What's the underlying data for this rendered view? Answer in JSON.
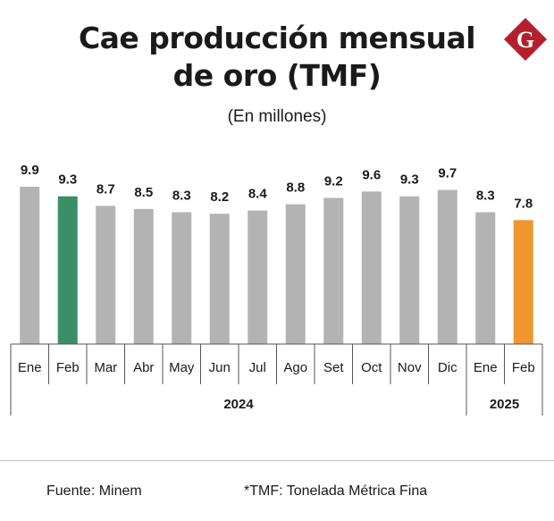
{
  "header": {
    "title_line1": "Cae producción mensual",
    "title_line2": "de oro (TMF)",
    "subtitle": "(En millones)",
    "logo_letter": "G"
  },
  "footer": {
    "source": "Fuente: Minem",
    "note": "*TMF: Tonelada Métrica Fina"
  },
  "colors": {
    "default_bar": "#b3b3b3",
    "highlight_green": "#3a8f68",
    "highlight_orange": "#f0962e",
    "logo": "#b3202b",
    "axis": "#555555"
  },
  "chart_data": {
    "type": "bar",
    "title": "Cae producción mensual de oro (TMF)",
    "subtitle": "(En millones)",
    "categories": [
      "Ene",
      "Feb",
      "Mar",
      "Abr",
      "May",
      "Jun",
      "Jul",
      "Ago",
      "Set",
      "Oct",
      "Nov",
      "Dic",
      "Ene",
      "Feb"
    ],
    "values": [
      9.9,
      9.3,
      8.7,
      8.5,
      8.3,
      8.2,
      8.4,
      8.8,
      9.2,
      9.6,
      9.3,
      9.7,
      8.3,
      7.8
    ],
    "value_labels": [
      "9.9",
      "9.3",
      "8.7",
      "8.5",
      "8.3",
      "8.2",
      "8.4",
      "8.8",
      "9.2",
      "9.6",
      "9.3",
      "9.7",
      "8.3",
      "7.8"
    ],
    "highlight": {
      "1": "green",
      "13": "orange"
    },
    "year_groups": [
      {
        "label": "2024",
        "start": 0,
        "count": 12
      },
      {
        "label": "2025",
        "start": 12,
        "count": 2
      }
    ],
    "xlabel": "",
    "ylabel": ""
  }
}
